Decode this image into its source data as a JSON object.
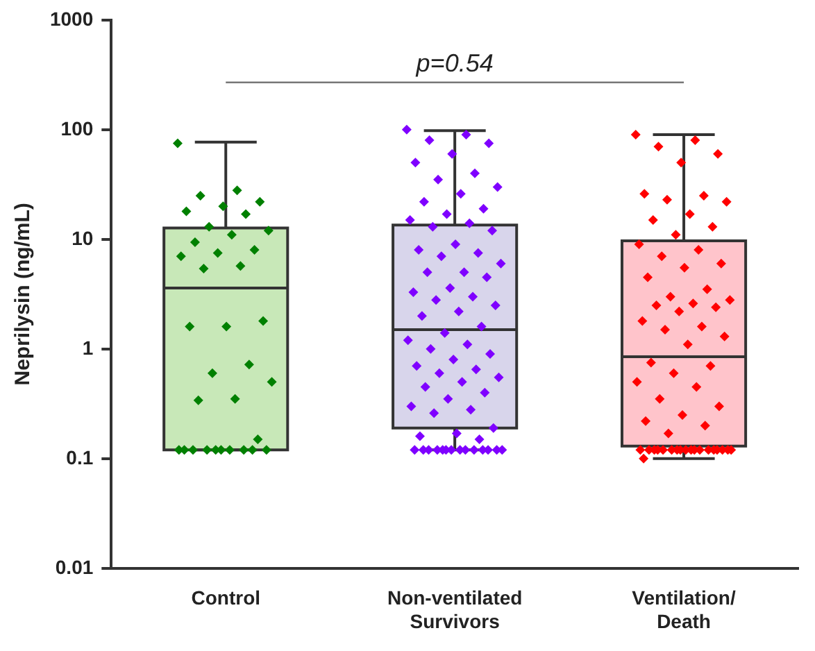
{
  "chart_data": {
    "type": "box",
    "ylabel": "Neprilysin (ng/mL)",
    "annotations": [
      "p=0.54"
    ],
    "categories": [
      "Control",
      "Non-ventilated Survivors",
      "Ventilation/ Death"
    ],
    "log": "y",
    "ylim": [
      0.01,
      1000
    ],
    "yticks": [
      0.01,
      0.1,
      1,
      10,
      100,
      1000
    ],
    "grid": false,
    "legend": false,
    "series": [
      {
        "colors": [
          "#c8e8b8",
          "#d8d5eb",
          "#ffc4cb"
        ],
        "boxes": [
          {
            "low": 0.12,
            "q1": 0.12,
            "median": 3.6,
            "q3": 12.7,
            "high": 77
          },
          {
            "low": 0.12,
            "q1": 0.19,
            "median": 1.5,
            "q3": 13.5,
            "high": 98
          },
          {
            "low": 0.1,
            "q1": 0.13,
            "median": 0.85,
            "q3": 9.7,
            "high": 90
          }
        ]
      },
      {
        "type": "scatter",
        "color": "#008000",
        "marker": "diamond",
        "x": [
          "Control",
          "Control",
          "Control",
          "Control",
          "Control",
          "Control",
          "Control",
          "Control",
          "Control",
          "Control",
          "Control",
          "Control",
          "Control",
          "Control",
          "Control",
          "Control",
          "Control",
          "Control",
          "Control",
          "Control",
          "Control",
          "Control",
          "Control",
          "Control",
          "Control",
          "Control",
          "Control",
          "Control",
          "Control",
          "Control",
          "Control",
          "Control",
          "Control",
          "Control",
          "Control"
        ],
        "values": [
          75,
          28,
          25,
          22,
          20,
          18,
          17,
          13,
          12,
          11,
          9.4,
          8,
          7.5,
          7,
          5.7,
          5.4,
          1.8,
          1.6,
          1.6,
          0.72,
          0.6,
          0.5,
          0.35,
          0.34,
          0.15,
          0.12,
          0.12,
          0.12,
          0.12,
          0.12,
          0.12,
          0.12,
          0.12,
          0.12,
          0.12
        ]
      },
      {
        "type": "scatter",
        "color": "#7f00ff",
        "marker": "diamond",
        "x": [
          "Non-ventilated Survivors",
          "Non-ventilated Survivors",
          "Non-ventilated Survivors",
          "Non-ventilated Survivors",
          "Non-ventilated Survivors",
          "Non-ventilated Survivors",
          "Non-ventilated Survivors",
          "Non-ventilated Survivors",
          "Non-ventilated Survivors",
          "Non-ventilated Survivors",
          "Non-ventilated Survivors",
          "Non-ventilated Survivors",
          "Non-ventilated Survivors",
          "Non-ventilated Survivors",
          "Non-ventilated Survivors",
          "Non-ventilated Survivors",
          "Non-ventilated Survivors",
          "Non-ventilated Survivors",
          "Non-ventilated Survivors",
          "Non-ventilated Survivors",
          "Non-ventilated Survivors",
          "Non-ventilated Survivors",
          "Non-ventilated Survivors",
          "Non-ventilated Survivors",
          "Non-ventilated Survivors",
          "Non-ventilated Survivors",
          "Non-ventilated Survivors",
          "Non-ventilated Survivors",
          "Non-ventilated Survivors",
          "Non-ventilated Survivors",
          "Non-ventilated Survivors",
          "Non-ventilated Survivors",
          "Non-ventilated Survivors",
          "Non-ventilated Survivors",
          "Non-ventilated Survivors",
          "Non-ventilated Survivors",
          "Non-ventilated Survivors",
          "Non-ventilated Survivors",
          "Non-ventilated Survivors",
          "Non-ventilated Survivors",
          "Non-ventilated Survivors",
          "Non-ventilated Survivors",
          "Non-ventilated Survivors",
          "Non-ventilated Survivors",
          "Non-ventilated Survivors",
          "Non-ventilated Survivors",
          "Non-ventilated Survivors",
          "Non-ventilated Survivors",
          "Non-ventilated Survivors",
          "Non-ventilated Survivors",
          "Non-ventilated Survivors",
          "Non-ventilated Survivors",
          "Non-ventilated Survivors",
          "Non-ventilated Survivors",
          "Non-ventilated Survivors",
          "Non-ventilated Survivors",
          "Non-ventilated Survivors",
          "Non-ventilated Survivors",
          "Non-ventilated Survivors",
          "Non-ventilated Survivors",
          "Non-ventilated Survivors",
          "Non-ventilated Survivors",
          "Non-ventilated Survivors",
          "Non-ventilated Survivors",
          "Non-ventilated Survivors",
          "Non-ventilated Survivors",
          "Non-ventilated Survivors",
          "Non-ventilated Survivors"
        ],
        "values": [
          100,
          90,
          80,
          75,
          60,
          50,
          40,
          35,
          30,
          26,
          22,
          19,
          17,
          15,
          14,
          13,
          12,
          9,
          8,
          7.5,
          7,
          6,
          5,
          5,
          4.5,
          3.6,
          3.3,
          3,
          2.8,
          2.5,
          2.2,
          2,
          1.6,
          1.4,
          1.2,
          1.1,
          1,
          0.9,
          0.8,
          0.7,
          0.65,
          0.6,
          0.55,
          0.5,
          0.45,
          0.4,
          0.35,
          0.3,
          0.28,
          0.26,
          0.19,
          0.17,
          0.16,
          0.15,
          0.12,
          0.12,
          0.12,
          0.12,
          0.12,
          0.12,
          0.12,
          0.12,
          0.12,
          0.12,
          0.12,
          0.12,
          0.12,
          0.12
        ]
      },
      {
        "type": "scatter",
        "color": "#ff0000",
        "marker": "diamond",
        "x": [
          "Ventilation/ Death",
          "Ventilation/ Death",
          "Ventilation/ Death",
          "Ventilation/ Death",
          "Ventilation/ Death",
          "Ventilation/ Death",
          "Ventilation/ Death",
          "Ventilation/ Death",
          "Ventilation/ Death",
          "Ventilation/ Death",
          "Ventilation/ Death",
          "Ventilation/ Death",
          "Ventilation/ Death",
          "Ventilation/ Death",
          "Ventilation/ Death",
          "Ventilation/ Death",
          "Ventilation/ Death",
          "Ventilation/ Death",
          "Ventilation/ Death",
          "Ventilation/ Death",
          "Ventilation/ Death",
          "Ventilation/ Death",
          "Ventilation/ Death",
          "Ventilation/ Death",
          "Ventilation/ Death",
          "Ventilation/ Death",
          "Ventilation/ Death",
          "Ventilation/ Death",
          "Ventilation/ Death",
          "Ventilation/ Death",
          "Ventilation/ Death",
          "Ventilation/ Death",
          "Ventilation/ Death",
          "Ventilation/ Death",
          "Ventilation/ Death",
          "Ventilation/ Death",
          "Ventilation/ Death",
          "Ventilation/ Death",
          "Ventilation/ Death",
          "Ventilation/ Death",
          "Ventilation/ Death",
          "Ventilation/ Death",
          "Ventilation/ Death",
          "Ventilation/ Death",
          "Ventilation/ Death",
          "Ventilation/ Death",
          "Ventilation/ Death",
          "Ventilation/ Death",
          "Ventilation/ Death",
          "Ventilation/ Death",
          "Ventilation/ Death",
          "Ventilation/ Death",
          "Ventilation/ Death",
          "Ventilation/ Death",
          "Ventilation/ Death",
          "Ventilation/ Death",
          "Ventilation/ Death",
          "Ventilation/ Death",
          "Ventilation/ Death",
          "Ventilation/ Death",
          "Ventilation/ Death"
        ],
        "values": [
          90,
          80,
          70,
          60,
          50,
          26,
          25,
          23,
          22,
          17,
          15,
          13,
          11,
          9,
          8,
          7,
          6,
          5.5,
          4.5,
          3.5,
          3,
          2.8,
          2.6,
          2.5,
          2.4,
          2.2,
          1.8,
          1.6,
          1.5,
          1.3,
          1.1,
          0.75,
          0.7,
          0.6,
          0.5,
          0.45,
          0.35,
          0.3,
          0.25,
          0.22,
          0.2,
          0.17,
          0.12,
          0.12,
          0.12,
          0.12,
          0.12,
          0.12,
          0.12,
          0.12,
          0.12,
          0.12,
          0.12,
          0.12,
          0.12,
          0.12,
          0.12,
          0.12,
          0.12,
          0.12,
          0.1
        ]
      }
    ]
  }
}
